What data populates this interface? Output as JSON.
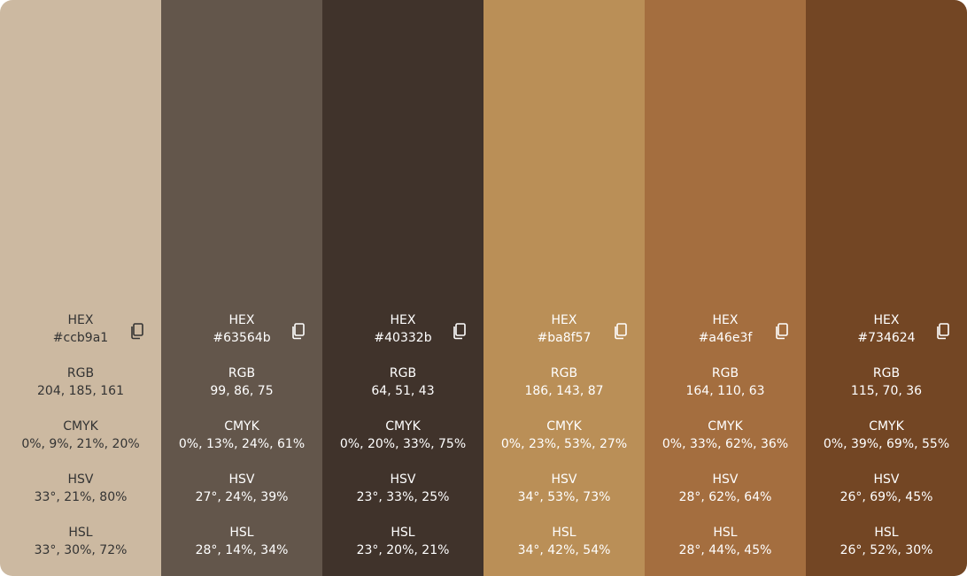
{
  "swatches": [
    {
      "bg": "#ccb9a1",
      "text_color": "#333333",
      "hex_label": "HEX",
      "hex": "#ccb9a1",
      "rgb_label": "RGB",
      "rgb": "204, 185, 161",
      "cmyk_label": "CMYK",
      "cmyk": "0%, 9%, 21%, 20%",
      "hsv_label": "HSV",
      "hsv": "33°, 21%, 80%",
      "hsl_label": "HSL",
      "hsl": "33°, 30%, 72%",
      "copy_icon": "copy-icon"
    },
    {
      "bg": "#63564b",
      "text_color": "#ffffff",
      "hex_label": "HEX",
      "hex": "#63564b",
      "rgb_label": "RGB",
      "rgb": "99, 86, 75",
      "cmyk_label": "CMYK",
      "cmyk": "0%, 13%, 24%, 61%",
      "hsv_label": "HSV",
      "hsv": "27°, 24%, 39%",
      "hsl_label": "HSL",
      "hsl": "28°, 14%, 34%",
      "copy_icon": "copy-icon"
    },
    {
      "bg": "#40332b",
      "text_color": "#ffffff",
      "hex_label": "HEX",
      "hex": "#40332b",
      "rgb_label": "RGB",
      "rgb": "64, 51, 43",
      "cmyk_label": "CMYK",
      "cmyk": "0%, 20%, 33%, 75%",
      "hsv_label": "HSV",
      "hsv": "23°, 33%, 25%",
      "hsl_label": "HSL",
      "hsl": "23°, 20%, 21%",
      "copy_icon": "copy-icon"
    },
    {
      "bg": "#ba8f57",
      "text_color": "#ffffff",
      "hex_label": "HEX",
      "hex": "#ba8f57",
      "rgb_label": "RGB",
      "rgb": "186, 143, 87",
      "cmyk_label": "CMYK",
      "cmyk": "0%, 23%, 53%, 27%",
      "hsv_label": "HSV",
      "hsv": "34°, 53%, 73%",
      "hsl_label": "HSL",
      "hsl": "34°, 42%, 54%",
      "copy_icon": "copy-icon"
    },
    {
      "bg": "#a46e3f",
      "text_color": "#ffffff",
      "hex_label": "HEX",
      "hex": "#a46e3f",
      "rgb_label": "RGB",
      "rgb": "164, 110, 63",
      "cmyk_label": "CMYK",
      "cmyk": "0%, 33%, 62%, 36%",
      "hsv_label": "HSV",
      "hsv": "28°, 62%, 64%",
      "hsl_label": "HSL",
      "hsl": "28°, 44%, 45%",
      "copy_icon": "copy-icon"
    },
    {
      "bg": "#734624",
      "text_color": "#ffffff",
      "hex_label": "HEX",
      "hex": "#734624",
      "rgb_label": "RGB",
      "rgb": "115, 70, 36",
      "cmyk_label": "CMYK",
      "cmyk": "0%, 39%, 69%, 55%",
      "hsv_label": "HSV",
      "hsv": "26°, 69%, 45%",
      "hsl_label": "HSL",
      "hsl": "26°, 52%, 30%",
      "copy_icon": "copy-icon"
    }
  ]
}
